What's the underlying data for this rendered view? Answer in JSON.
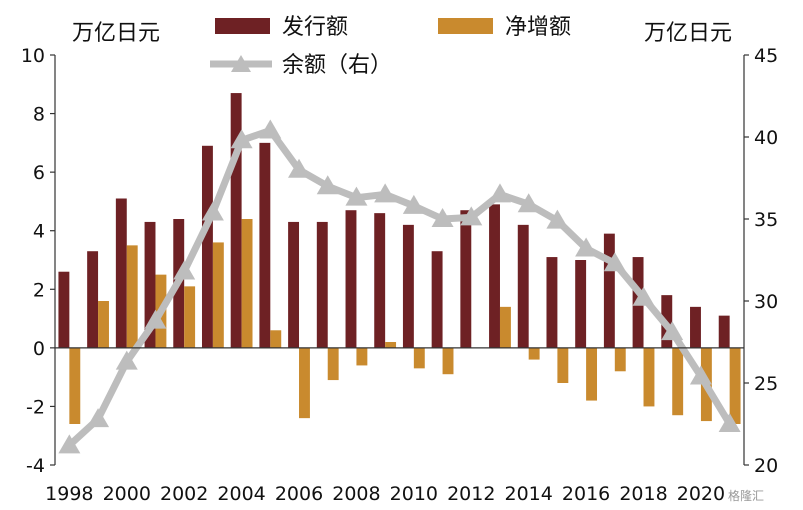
{
  "chart_data": {
    "type": "bar+line",
    "left_axis": {
      "unit": "万亿日元",
      "ylim": [
        -4,
        10
      ],
      "ticks": [
        -4,
        -2,
        0,
        2,
        4,
        6,
        8,
        10
      ]
    },
    "right_axis": {
      "unit": "万亿日元",
      "ylim": [
        20,
        45
      ],
      "ticks": [
        20,
        25,
        30,
        35,
        40,
        45
      ]
    },
    "x": [
      1998,
      1999,
      2000,
      2001,
      2002,
      2003,
      2004,
      2005,
      2006,
      2007,
      2008,
      2009,
      2010,
      2011,
      2012,
      2013,
      2014,
      2015,
      2016,
      2017,
      2018,
      2019,
      2020,
      2021
    ],
    "x_tick_labels": [
      "1998",
      "2000",
      "2002",
      "2004",
      "2006",
      "2008",
      "2010",
      "2012",
      "2014",
      "2016",
      "2018",
      "2020"
    ],
    "series": [
      {
        "name": "发行额",
        "axis": "left",
        "kind": "bar",
        "color": "#6e2124",
        "values": [
          2.6,
          3.3,
          5.1,
          4.3,
          4.4,
          6.9,
          8.7,
          7.0,
          4.3,
          4.3,
          4.7,
          4.6,
          4.2,
          3.3,
          4.7,
          4.9,
          4.2,
          3.1,
          3.0,
          3.9,
          3.1,
          1.8,
          1.4,
          1.1
        ]
      },
      {
        "name": "净增额",
        "axis": "left",
        "kind": "bar",
        "color": "#c98a2e",
        "values": [
          -2.6,
          1.6,
          3.5,
          2.5,
          2.1,
          3.6,
          4.4,
          0.6,
          -2.4,
          -1.1,
          -0.6,
          0.2,
          -0.7,
          -0.9,
          0.0,
          1.4,
          -0.4,
          -1.2,
          -1.8,
          -0.8,
          -2.0,
          -2.3,
          -2.5,
          -2.6
        ]
      },
      {
        "name": "余额（右）",
        "axis": "right",
        "kind": "line",
        "color": "#bdbdbd",
        "values": [
          21.2,
          22.8,
          26.3,
          28.8,
          31.8,
          35.4,
          39.8,
          40.4,
          38.0,
          37.0,
          36.3,
          36.5,
          35.8,
          35.0,
          35.1,
          36.5,
          35.9,
          34.9,
          33.2,
          32.3,
          30.2,
          28.1,
          25.4,
          22.5
        ]
      }
    ]
  },
  "watermark": "格隆汇"
}
